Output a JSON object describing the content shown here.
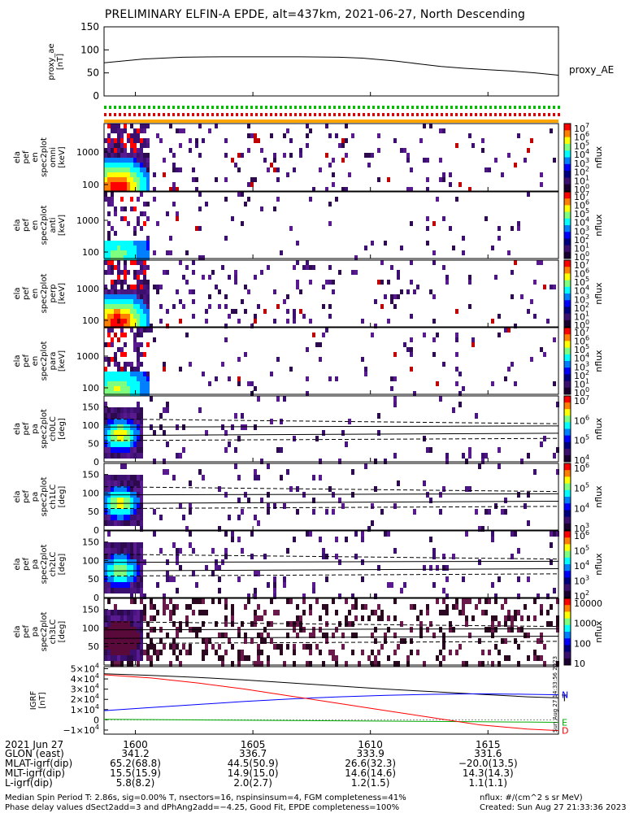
{
  "title": "PRELIMINARY ELFIN-A EPDE, alt=437km, 2021-06-27, North Descending",
  "colors": {
    "line_black": "#000000",
    "grf_blue": "#0000ff",
    "grf_red": "#ff0000",
    "grf_green": "#00aa00",
    "accent_orange": "#ffa500",
    "bar_green": "#00c000",
    "bar_red": "#e00000",
    "bar_yellow": "#ffd000"
  },
  "chart_data": [
    {
      "type": "line",
      "panel": "proxy_ae",
      "ylabel": "proxy_ae [nT]",
      "series_label": "proxy_AE",
      "yticks": [
        "150",
        "100",
        "50",
        "0"
      ],
      "ylim": [
        0,
        150
      ],
      "x_minutes": [
        0,
        5,
        10,
        15,
        20,
        25,
        30,
        33,
        37,
        40,
        43,
        46,
        49,
        52,
        55,
        58
      ],
      "values": [
        72,
        80,
        84,
        85,
        85,
        85,
        84,
        82,
        76,
        70,
        64,
        60,
        57,
        54,
        50,
        45
      ]
    },
    {
      "type": "heatmap",
      "panel": "omni",
      "ylabel": "ela pef en spec2plot omni [keV]",
      "yticks": [
        "1000",
        "100"
      ],
      "colorbar_label": "nflux",
      "colorbar_ticks": [
        "10^7",
        "10^6",
        "10^5",
        "10^4",
        "10^3",
        "10^2",
        "10^1",
        "10^0"
      ]
    },
    {
      "type": "heatmap",
      "panel": "anti",
      "ylabel": "ela pef en spec2plot anti [keV]",
      "yticks": [
        "1000",
        "100"
      ],
      "colorbar_label": "nflux",
      "colorbar_ticks": [
        "10^7",
        "10^6",
        "10^5",
        "10^4",
        "10^3",
        "10^2",
        "10^1",
        "10^0"
      ]
    },
    {
      "type": "heatmap",
      "panel": "perp",
      "ylabel": "ela pef en spec2plot perp [keV]",
      "yticks": [
        "1000",
        "100"
      ],
      "colorbar_label": "nflux",
      "colorbar_ticks": [
        "10^7",
        "10^6",
        "10^5",
        "10^4",
        "10^3",
        "10^2",
        "10^1",
        "10^0"
      ]
    },
    {
      "type": "heatmap",
      "panel": "para",
      "ylabel": "ela pef en spec2plot para [keV]",
      "yticks": [
        "1000",
        "100"
      ],
      "colorbar_label": "nflux",
      "colorbar_ticks": [
        "10^7",
        "10^6",
        "10^5",
        "10^4",
        "10^3",
        "10^2",
        "10^1",
        "10^0"
      ]
    },
    {
      "type": "heatmap",
      "panel": "ch0LC",
      "ylabel": "ela pef pa spec2plot ch0LC [deg]",
      "yticks": [
        "150",
        "100",
        "50",
        "0"
      ],
      "colorbar_label": "nflux",
      "colorbar_ticks": [
        "10^7",
        "10^6",
        "10^5",
        "10^4"
      ]
    },
    {
      "type": "heatmap",
      "panel": "ch1LC",
      "ylabel": "ela pef pa spec2plot ch1LC [deg]",
      "yticks": [
        "150",
        "100",
        "50",
        "0"
      ],
      "colorbar_label": "nflux",
      "colorbar_ticks": [
        "10^6",
        "10^5",
        "10^4",
        "10^3"
      ]
    },
    {
      "type": "heatmap",
      "panel": "ch2LC",
      "ylabel": "ela pef pa spec2plot ch2LC [deg]",
      "yticks": [
        "150",
        "100",
        "50",
        "0"
      ],
      "colorbar_label": "nflux",
      "colorbar_ticks": [
        "10^6",
        "10^5",
        "10^4",
        "10^3",
        "10^2"
      ]
    },
    {
      "type": "heatmap",
      "panel": "ch3LC",
      "ylabel": "ela pef pa spec2plot ch3LC [deg]",
      "yticks": [
        "150",
        "100",
        "50"
      ],
      "colorbar_label": "nflux",
      "colorbar_ticks": [
        "10000",
        "1000",
        "100",
        "10"
      ]
    },
    {
      "type": "line",
      "panel": "igrf",
      "ylabel": "IGRF [nT]",
      "yticks": [
        "5×10^4",
        "4×10^4",
        "3×10^4",
        "2×10^4",
        "1×10^4",
        "0",
        "−1×10^4"
      ],
      "ylim": [
        -14000,
        52000
      ],
      "x_minutes": [
        0,
        6,
        12,
        18,
        24,
        30,
        36,
        42,
        48,
        54,
        58
      ],
      "series": [
        {
          "name": "T",
          "color": "#000000",
          "values": [
            45000,
            43500,
            41500,
            39000,
            36000,
            33000,
            30000,
            27500,
            25000,
            22500,
            21500
          ]
        },
        {
          "name": "N",
          "color": "#0000ff",
          "values": [
            9000,
            12000,
            15000,
            18000,
            20500,
            22500,
            24000,
            25000,
            25500,
            25000,
            24500
          ]
        },
        {
          "name": "E",
          "color": "#00aa00",
          "values": [
            500,
            200,
            -100,
            -400,
            -700,
            -1000,
            -1300,
            -1600,
            -1900,
            -2200,
            -2500
          ]
        },
        {
          "name": "D",
          "color": "#ff0000",
          "values": [
            44000,
            41000,
            36000,
            30000,
            23000,
            16000,
            9000,
            2000,
            -5000,
            -9000,
            -10500
          ]
        }
      ]
    }
  ],
  "time_axis": {
    "date_label": "2021 Jun 27",
    "ticks": [
      {
        "label": "1600",
        "glon": "341.2",
        "mlat": "65.2(68.8)",
        "mlt": "15.5(15.9)",
        "l": "5.8(8.2)"
      },
      {
        "label": "1605",
        "glon": "336.7",
        "mlat": "44.5(50.9)",
        "mlt": "14.9(15.0)",
        "l": "2.0(2.7)"
      },
      {
        "label": "1610",
        "glon": "333.9",
        "mlat": "26.6(32.3)",
        "mlt": "14.6(14.6)",
        "l": "1.2(1.5)"
      },
      {
        "label": "1615",
        "glon": "331.6",
        "mlat": "−20.0(13.5)",
        "mlt": "14.3(14.3)",
        "l": "1.1(1.1)"
      }
    ],
    "row_labels": {
      "glon": "GLON (east)",
      "mlat": "MLAT-igrf(dip)",
      "mlt": "MLT-igrf(dip)",
      "l": "L-igrf(dip)"
    }
  },
  "side_stamp": "Sun Aug 27 14:33:56 2023",
  "footer": {
    "line1": "Median Spin Period T: 2.86s, sig=0.00% T, nsectors=16, nspinsinsum=4, FGM completeness=41%",
    "line2": "Phase delay values dSect2add=3 and dPhAng2add=−4.25, Good Fit, EPDE completeness=100%",
    "right1": "nflux: #/(cm^2 s sr MeV)",
    "right2": "Created: Sun Aug 27 21:33:36 2023"
  }
}
